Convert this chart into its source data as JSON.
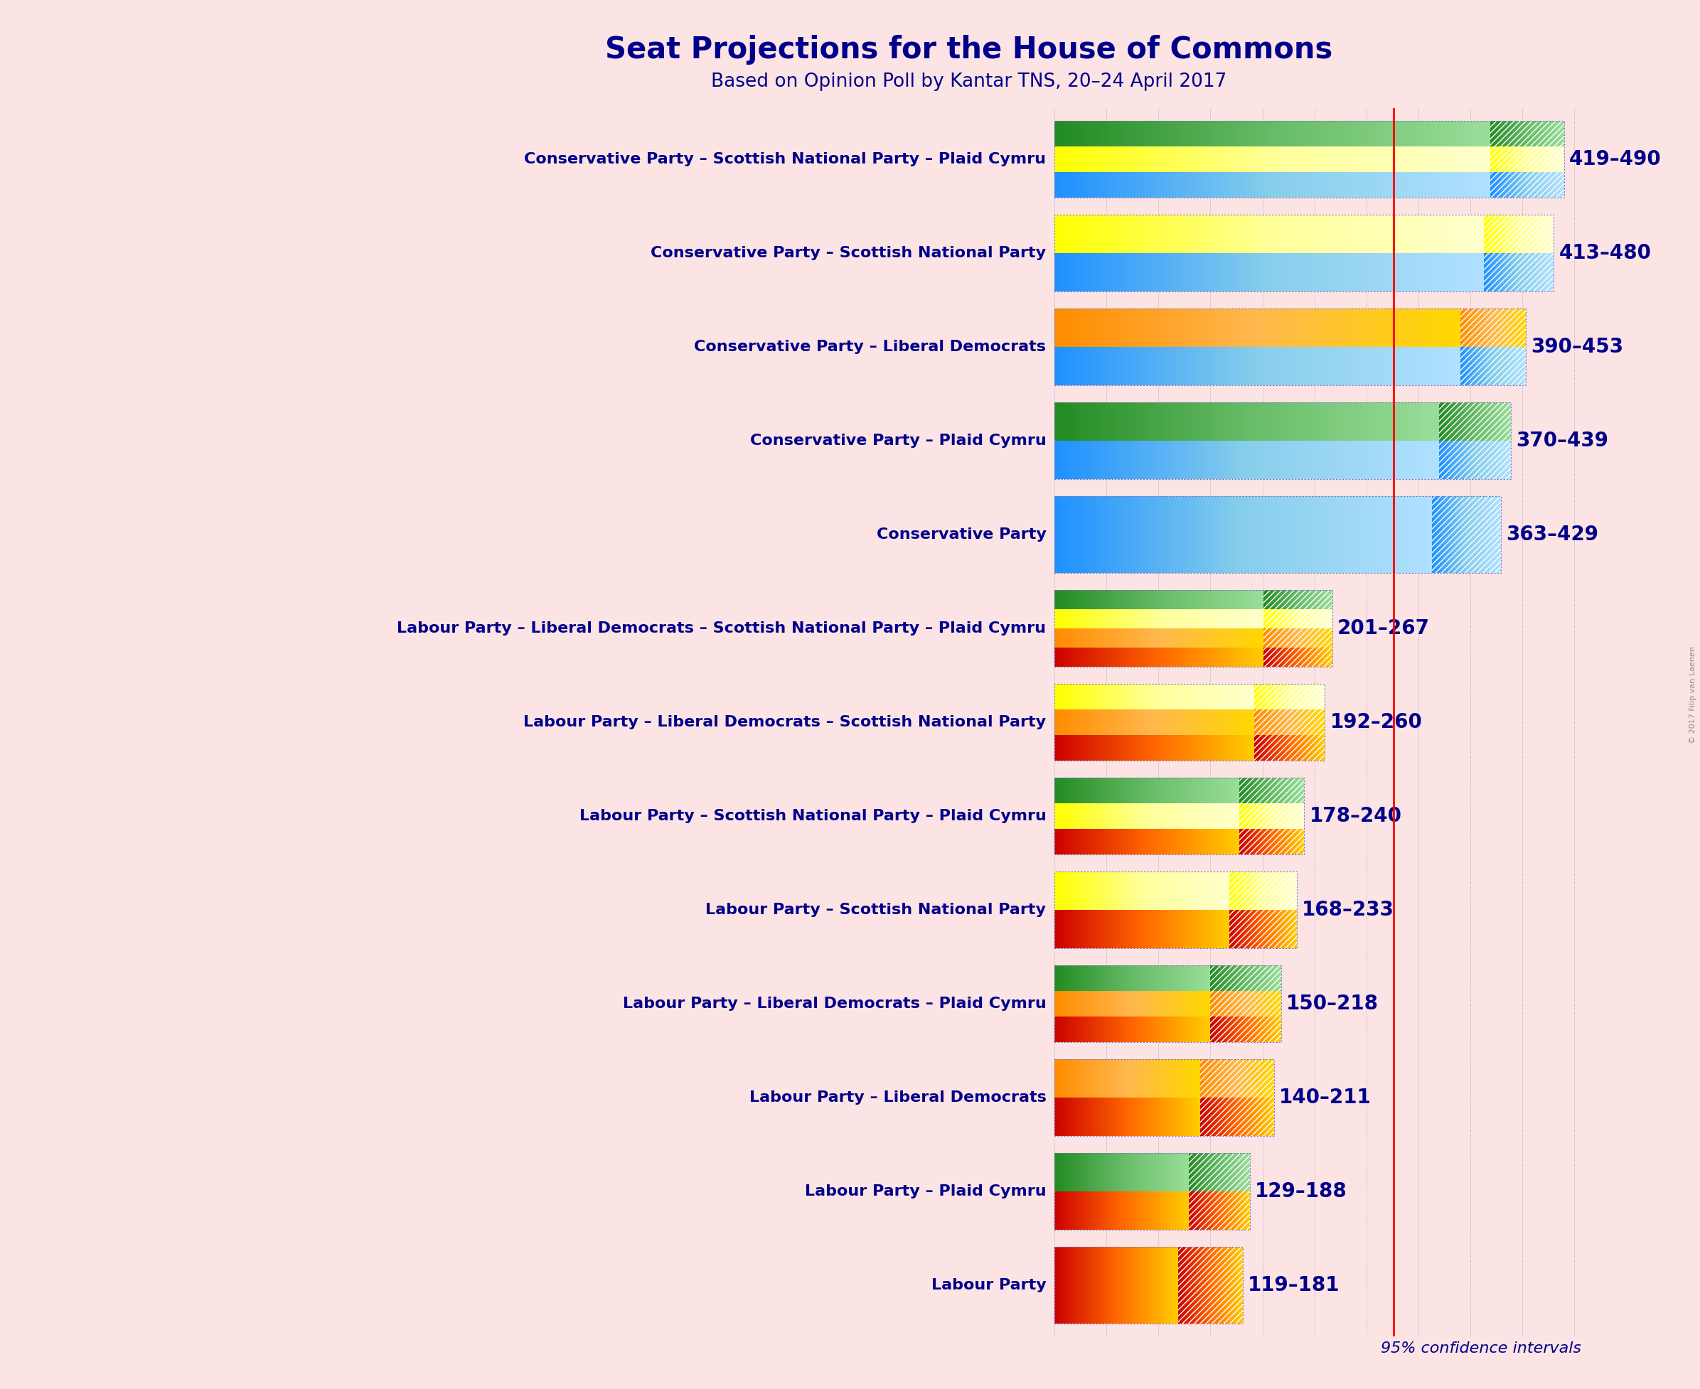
{
  "title": "Seat Projections for the House of Commons",
  "subtitle": "Based on Opinion Poll by Kantar TNS, 20–24 April 2017",
  "background_color": "#fce4e4",
  "title_color": "#00008B",
  "majority_line": 326,
  "xlim": [
    0,
    510
  ],
  "confidence_note": "95% confidence intervals",
  "copyright": "© 2017 Filip van Laenen",
  "coalitions": [
    {
      "label": "Conservative Party – Scottish National Party – Plaid Cymru",
      "low": 419,
      "high": 490,
      "parties": [
        {
          "name": "Conservative",
          "colors": [
            "#1E90FF",
            "#87CEEB",
            "#B0E0FF"
          ]
        },
        {
          "name": "SNP",
          "colors": [
            "#FFFF00",
            "#FFFF99",
            "#FFFFCC"
          ]
        },
        {
          "name": "PlaidCymru",
          "colors": [
            "#228B22",
            "#66BB66",
            "#99DD99"
          ]
        }
      ]
    },
    {
      "label": "Conservative Party – Scottish National Party",
      "low": 413,
      "high": 480,
      "parties": [
        {
          "name": "Conservative",
          "colors": [
            "#1E90FF",
            "#87CEEB",
            "#B0E0FF"
          ]
        },
        {
          "name": "SNP",
          "colors": [
            "#FFFF00",
            "#FFFF99",
            "#FFFFCC"
          ]
        }
      ]
    },
    {
      "label": "Conservative Party – Liberal Democrats",
      "low": 390,
      "high": 453,
      "parties": [
        {
          "name": "Conservative",
          "colors": [
            "#1E90FF",
            "#87CEEB",
            "#B0E0FF"
          ]
        },
        {
          "name": "LibDem",
          "colors": [
            "#FF8C00",
            "#FFB84D",
            "#FFD700"
          ]
        }
      ]
    },
    {
      "label": "Conservative Party – Plaid Cymru",
      "low": 370,
      "high": 439,
      "parties": [
        {
          "name": "Conservative",
          "colors": [
            "#1E90FF",
            "#87CEEB",
            "#B0E0FF"
          ]
        },
        {
          "name": "PlaidCymru",
          "colors": [
            "#228B22",
            "#66BB66",
            "#99DD99"
          ]
        }
      ]
    },
    {
      "label": "Conservative Party",
      "low": 363,
      "high": 429,
      "parties": [
        {
          "name": "Conservative",
          "colors": [
            "#1E90FF",
            "#87CEEB",
            "#B0E0FF"
          ]
        }
      ]
    },
    {
      "label": "Labour Party – Liberal Democrats – Scottish National Party – Plaid Cymru",
      "low": 201,
      "high": 267,
      "parties": [
        {
          "name": "Labour",
          "colors": [
            "#CC0000",
            "#FF6600",
            "#FFCC00"
          ]
        },
        {
          "name": "LibDem",
          "colors": [
            "#FF8C00",
            "#FFB84D",
            "#FFD700"
          ]
        },
        {
          "name": "SNP",
          "colors": [
            "#FFFF00",
            "#FFFF99",
            "#FFFFCC"
          ]
        },
        {
          "name": "PlaidCymru",
          "colors": [
            "#228B22",
            "#66BB66",
            "#99DD99"
          ]
        }
      ]
    },
    {
      "label": "Labour Party – Liberal Democrats – Scottish National Party",
      "low": 192,
      "high": 260,
      "parties": [
        {
          "name": "Labour",
          "colors": [
            "#CC0000",
            "#FF6600",
            "#FFCC00"
          ]
        },
        {
          "name": "LibDem",
          "colors": [
            "#FF8C00",
            "#FFB84D",
            "#FFD700"
          ]
        },
        {
          "name": "SNP",
          "colors": [
            "#FFFF00",
            "#FFFF99",
            "#FFFFCC"
          ]
        }
      ]
    },
    {
      "label": "Labour Party – Scottish National Party – Plaid Cymru",
      "low": 178,
      "high": 240,
      "parties": [
        {
          "name": "Labour",
          "colors": [
            "#CC0000",
            "#FF6600",
            "#FFCC00"
          ]
        },
        {
          "name": "SNP",
          "colors": [
            "#FFFF00",
            "#FFFF99",
            "#FFFFCC"
          ]
        },
        {
          "name": "PlaidCymru",
          "colors": [
            "#228B22",
            "#66BB66",
            "#99DD99"
          ]
        }
      ]
    },
    {
      "label": "Labour Party – Scottish National Party",
      "low": 168,
      "high": 233,
      "parties": [
        {
          "name": "Labour",
          "colors": [
            "#CC0000",
            "#FF6600",
            "#FFCC00"
          ]
        },
        {
          "name": "SNP",
          "colors": [
            "#FFFF00",
            "#FFFF99",
            "#FFFFCC"
          ]
        }
      ]
    },
    {
      "label": "Labour Party – Liberal Democrats – Plaid Cymru",
      "low": 150,
      "high": 218,
      "parties": [
        {
          "name": "Labour",
          "colors": [
            "#CC0000",
            "#FF6600",
            "#FFCC00"
          ]
        },
        {
          "name": "LibDem",
          "colors": [
            "#FF8C00",
            "#FFB84D",
            "#FFD700"
          ]
        },
        {
          "name": "PlaidCymru",
          "colors": [
            "#228B22",
            "#66BB66",
            "#99DD99"
          ]
        }
      ]
    },
    {
      "label": "Labour Party – Liberal Democrats",
      "low": 140,
      "high": 211,
      "parties": [
        {
          "name": "Labour",
          "colors": [
            "#CC0000",
            "#FF6600",
            "#FFCC00"
          ]
        },
        {
          "name": "LibDem",
          "colors": [
            "#FF8C00",
            "#FFB84D",
            "#FFD700"
          ]
        }
      ]
    },
    {
      "label": "Labour Party – Plaid Cymru",
      "low": 129,
      "high": 188,
      "parties": [
        {
          "name": "Labour",
          "colors": [
            "#CC0000",
            "#FF6600",
            "#FFCC00"
          ]
        },
        {
          "name": "PlaidCymru",
          "colors": [
            "#228B22",
            "#66BB66",
            "#99DD99"
          ]
        }
      ]
    },
    {
      "label": "Labour Party",
      "low": 119,
      "high": 181,
      "parties": [
        {
          "name": "Labour",
          "colors": [
            "#CC0000",
            "#FF6600",
            "#FFCC00"
          ]
        }
      ]
    }
  ]
}
